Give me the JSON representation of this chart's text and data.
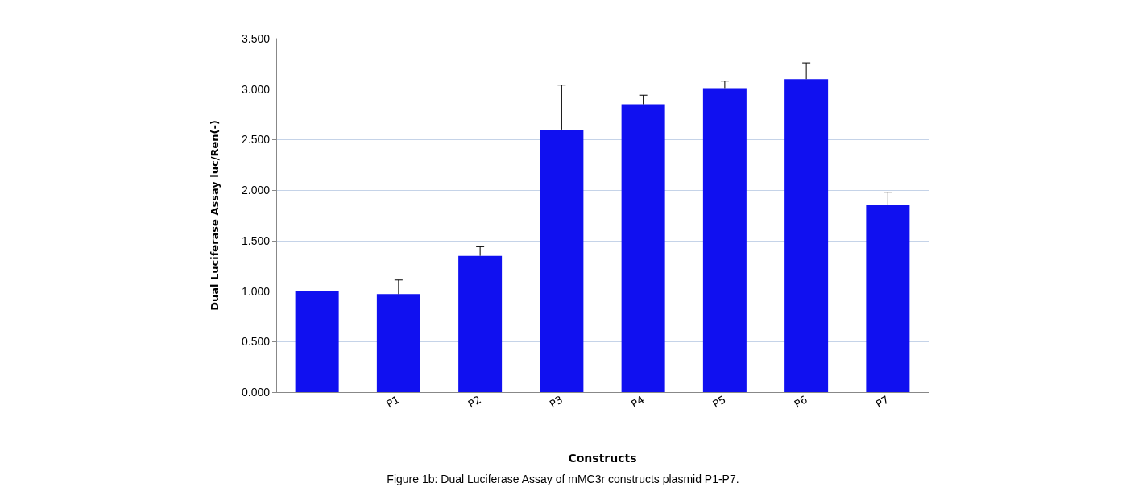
{
  "chart_data": {
    "type": "bar",
    "categories": [
      null,
      "P1",
      "P2",
      "P3",
      "P4",
      "P5",
      "P6",
      "P7"
    ],
    "values": [
      1.0,
      0.97,
      1.35,
      2.6,
      2.85,
      3.01,
      3.1,
      1.85
    ],
    "errors": [
      null,
      [
        0.97,
        1.11
      ],
      [
        1.35,
        1.44
      ],
      [
        2.6,
        3.04
      ],
      [
        2.85,
        2.94
      ],
      [
        3.01,
        3.08
      ],
      [
        3.1,
        3.26
      ],
      [
        1.85,
        1.98
      ]
    ],
    "color": "#1010f0",
    "ylabel": "Dual Luciferase Assay luc/Ren(-)",
    "xlabel": "Constructs",
    "ylim": [
      0,
      3.5
    ],
    "yticks": [
      {
        "value": 0,
        "label": "0.000"
      },
      {
        "value": 0.5,
        "label": "0.500"
      },
      {
        "value": 1,
        "label": "1.000"
      },
      {
        "value": 1.5,
        "label": "1.500"
      },
      {
        "value": 2,
        "label": "2.000"
      },
      {
        "value": 2.5,
        "label": "2.500"
      },
      {
        "value": 3,
        "label": "3.000"
      },
      {
        "value": 3.5,
        "label": "3.500"
      }
    ],
    "grid": "y",
    "annotations": [
      "Figure 1b: Dual Luciferase Assay of mMC3r constructs plasmid P1-P7."
    ]
  }
}
